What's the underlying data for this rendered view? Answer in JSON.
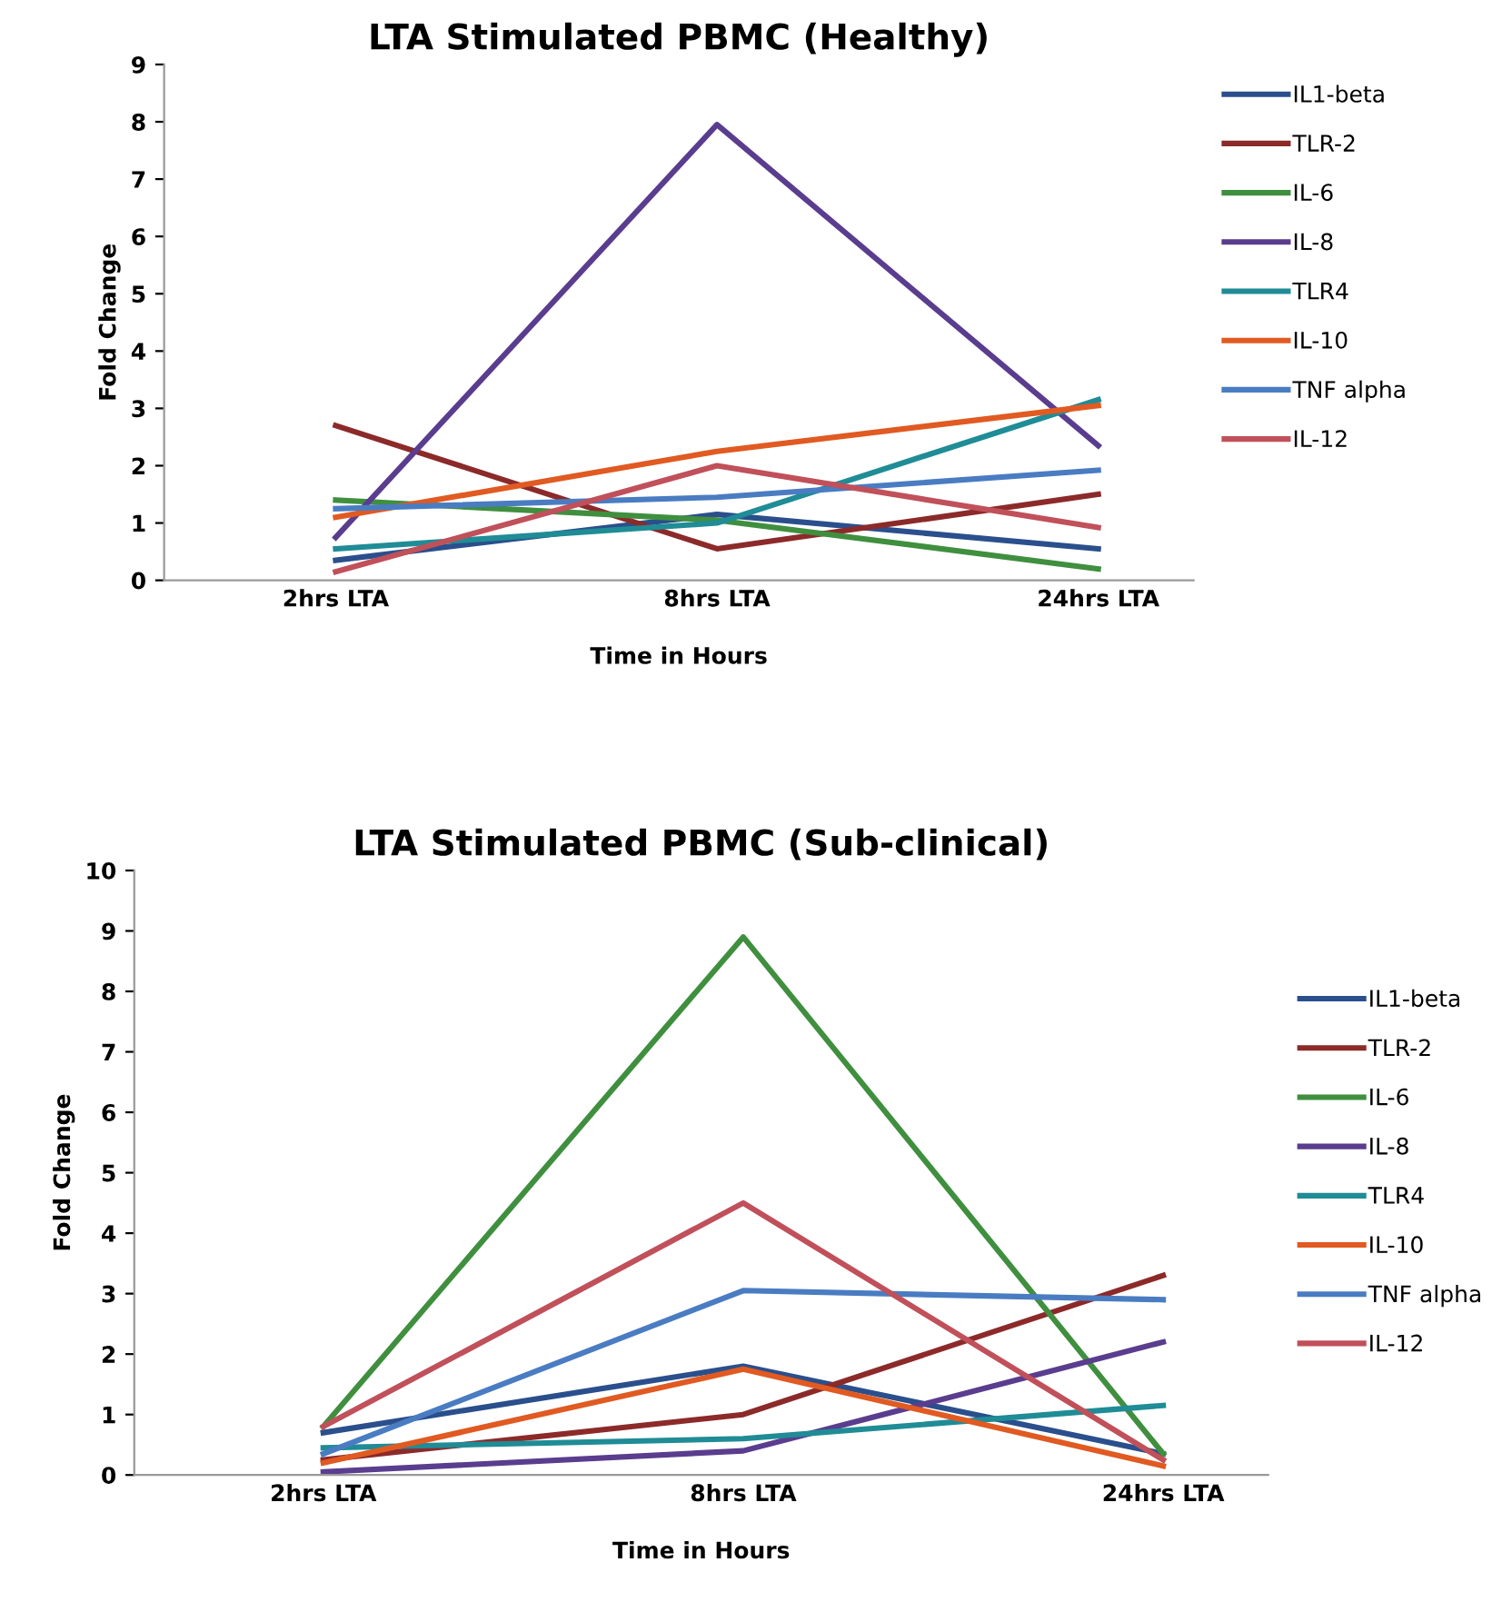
{
  "chart_data": [
    {
      "type": "line",
      "title": "LTA Stimulated PBMC (Healthy)",
      "xlabel": "Time in Hours",
      "ylabel": "Fold Change",
      "categories": [
        "2hrs LTA",
        "8hrs LTA",
        "24hrs LTA"
      ],
      "ylim": [
        0,
        9
      ],
      "yticks": [
        0,
        1,
        2,
        3,
        4,
        5,
        6,
        7,
        8,
        9
      ],
      "grid": false,
      "legend": "top right",
      "series": [
        {
          "name": "IL1-beta",
          "color": "#2a4f8c",
          "values": [
            0.35,
            1.15,
            0.55
          ]
        },
        {
          "name": "TLR-2",
          "color": "#8c2a2a",
          "values": [
            2.7,
            0.55,
            1.5
          ]
        },
        {
          "name": "IL-6",
          "color": "#3f8f3f",
          "values": [
            1.4,
            1.05,
            0.2
          ]
        },
        {
          "name": "IL-8",
          "color": "#5a3d8e",
          "values": [
            0.75,
            7.95,
            2.35
          ]
        },
        {
          "name": "TLR4",
          "color": "#1f8c96",
          "values": [
            0.55,
            1.0,
            3.15
          ]
        },
        {
          "name": "IL-10",
          "color": "#e05a22",
          "values": [
            1.1,
            2.25,
            3.05
          ]
        },
        {
          "name": "TNF alpha",
          "color": "#4a7cc2",
          "values": [
            1.25,
            1.45,
            1.92
          ]
        },
        {
          "name": "IL-12",
          "color": "#c0505a",
          "values": [
            0.15,
            2.0,
            0.92
          ]
        }
      ]
    },
    {
      "type": "line",
      "title": "LTA Stimulated PBMC (Sub-clinical)",
      "xlabel": "Time in Hours",
      "ylabel": "Fold Change",
      "categories": [
        "2hrs LTA",
        "8hrs LTA",
        "24hrs LTA"
      ],
      "ylim": [
        0,
        10
      ],
      "yticks": [
        0,
        1,
        2,
        3,
        4,
        5,
        6,
        7,
        8,
        9,
        10
      ],
      "grid": false,
      "legend": "right",
      "series": [
        {
          "name": "IL1-beta",
          "color": "#2a4f8c",
          "values": [
            0.7,
            1.8,
            0.35
          ]
        },
        {
          "name": "TLR-2",
          "color": "#8c2a2a",
          "values": [
            0.25,
            1.0,
            3.3
          ]
        },
        {
          "name": "IL-6",
          "color": "#3f8f3f",
          "values": [
            0.8,
            8.9,
            0.35
          ]
        },
        {
          "name": "IL-8",
          "color": "#5a3d8e",
          "values": [
            0.05,
            0.4,
            2.2
          ]
        },
        {
          "name": "TLR4",
          "color": "#1f8c96",
          "values": [
            0.45,
            0.6,
            1.15
          ]
        },
        {
          "name": "IL-10",
          "color": "#e05a22",
          "values": [
            0.2,
            1.75,
            0.15
          ]
        },
        {
          "name": "TNF alpha",
          "color": "#4a7cc2",
          "values": [
            0.35,
            3.05,
            2.9
          ]
        },
        {
          "name": "IL-12",
          "color": "#c0505a",
          "values": [
            0.8,
            4.5,
            0.25
          ]
        }
      ]
    }
  ]
}
